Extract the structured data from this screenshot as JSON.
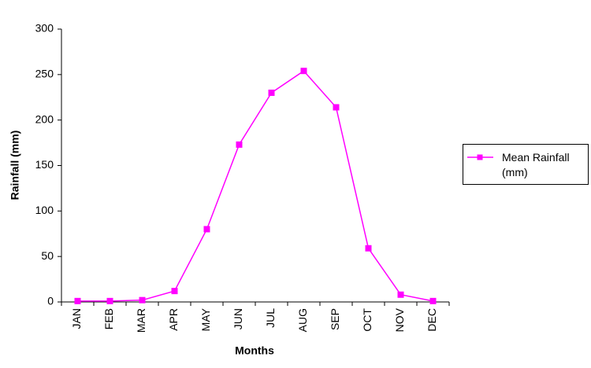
{
  "chart_data": {
    "type": "line",
    "x_label": "Months",
    "y_label": "Rainfall (mm)",
    "categories": [
      "JAN",
      "FEB",
      "MAR",
      "APR",
      "MAY",
      "JUN",
      "JUL",
      "AUG",
      "SEP",
      "OCT",
      "NOV",
      "DEC"
    ],
    "series": [
      {
        "name": "Mean Rainfall (mm)",
        "color": "#ff00ff",
        "values": [
          1,
          1,
          2,
          12,
          80,
          173,
          230,
          254,
          214,
          59,
          8,
          1
        ]
      }
    ],
    "ylim": [
      0,
      300
    ],
    "yticks": [
      0,
      50,
      100,
      150,
      200,
      250,
      300
    ],
    "grid": false,
    "legend": "right"
  }
}
